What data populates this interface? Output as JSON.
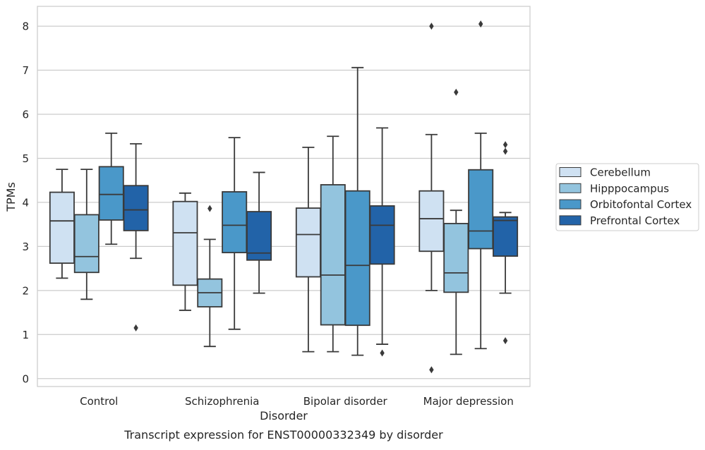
{
  "chart_data": {
    "type": "box",
    "caption": "Transcript expression for ENST00000332349 by disorder",
    "xlabel": "Disorder",
    "ylabel": "TPMs",
    "ylim": [
      -0.18,
      8.45
    ],
    "yticks": [
      0,
      1,
      2,
      3,
      4,
      5,
      6,
      7,
      8
    ],
    "grid": "horizontal",
    "legend_position": "right",
    "categories": [
      "Control",
      "Schizophrenia",
      "Bipolar disorder",
      "Major depression"
    ],
    "series": [
      {
        "name": "Cerebellum",
        "color": "#cfe1f2",
        "boxes": [
          {
            "whisker_low": 2.28,
            "q1": 2.62,
            "median": 3.58,
            "q3": 4.23,
            "whisker_high": 4.75,
            "outliers": []
          },
          {
            "whisker_low": 1.55,
            "q1": 2.12,
            "median": 3.31,
            "q3": 4.02,
            "whisker_high": 4.21,
            "outliers": []
          },
          {
            "whisker_low": 0.61,
            "q1": 2.31,
            "median": 3.27,
            "q3": 3.87,
            "whisker_high": 5.25,
            "outliers": []
          },
          {
            "whisker_low": 2.0,
            "q1": 2.89,
            "median": 3.63,
            "q3": 4.26,
            "whisker_high": 5.54,
            "outliers": [
              8.0,
              0.2
            ]
          }
        ]
      },
      {
        "name": "Hipppocampus",
        "color": "#93c4de",
        "boxes": [
          {
            "whisker_low": 1.8,
            "q1": 2.41,
            "median": 2.77,
            "q3": 3.72,
            "whisker_high": 4.75,
            "outliers": []
          },
          {
            "whisker_low": 0.73,
            "q1": 1.63,
            "median": 1.95,
            "q3": 2.26,
            "whisker_high": 3.16,
            "outliers": [
              3.86
            ]
          },
          {
            "whisker_low": 0.61,
            "q1": 1.22,
            "median": 2.35,
            "q3": 4.4,
            "whisker_high": 5.5,
            "outliers": []
          },
          {
            "whisker_low": 0.55,
            "q1": 1.96,
            "median": 2.4,
            "q3": 3.52,
            "whisker_high": 3.82,
            "outliers": [
              6.5
            ]
          }
        ]
      },
      {
        "name": "Orbitofontal Cortex",
        "color": "#4a98c9",
        "boxes": [
          {
            "whisker_low": 3.05,
            "q1": 3.6,
            "median": 4.18,
            "q3": 4.81,
            "whisker_high": 5.57,
            "outliers": []
          },
          {
            "whisker_low": 1.12,
            "q1": 2.86,
            "median": 3.48,
            "q3": 4.24,
            "whisker_high": 5.47,
            "outliers": []
          },
          {
            "whisker_low": 0.53,
            "q1": 1.21,
            "median": 2.57,
            "q3": 4.26,
            "whisker_high": 7.06,
            "outliers": []
          },
          {
            "whisker_low": 0.68,
            "q1": 2.95,
            "median": 3.35,
            "q3": 4.74,
            "whisker_high": 5.57,
            "outliers": [
              8.05
            ]
          }
        ]
      },
      {
        "name": "Prefrontal Cortex",
        "color": "#2263a8",
        "boxes": [
          {
            "whisker_low": 2.73,
            "q1": 3.36,
            "median": 3.83,
            "q3": 4.38,
            "whisker_high": 5.33,
            "outliers": [
              1.15
            ]
          },
          {
            "whisker_low": 1.94,
            "q1": 2.69,
            "median": 2.85,
            "q3": 3.79,
            "whisker_high": 4.68,
            "outliers": []
          },
          {
            "whisker_low": 0.78,
            "q1": 2.6,
            "median": 3.48,
            "q3": 3.92,
            "whisker_high": 5.69,
            "outliers": [
              0.58
            ]
          },
          {
            "whisker_low": 1.94,
            "q1": 2.78,
            "median": 3.59,
            "q3": 3.67,
            "whisker_high": 3.77,
            "outliers": [
              5.31,
              5.16,
              0.86
            ]
          }
        ]
      }
    ]
  }
}
